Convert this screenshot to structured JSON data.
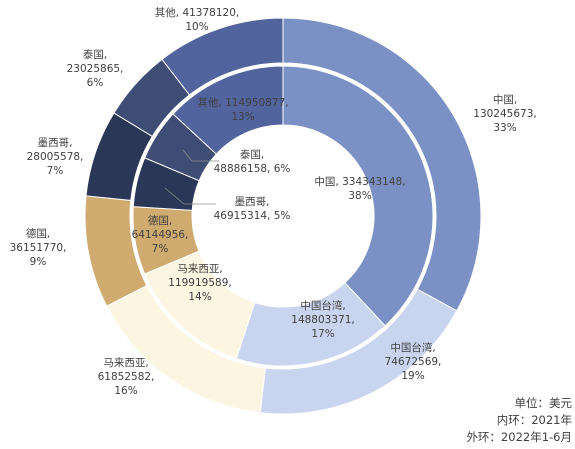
{
  "chart_data": [
    {
      "type": "pie",
      "ring": "outer",
      "categories": [
        "中国",
        "中国台湾",
        "马来西亚",
        "德国",
        "墨西哥",
        "泰国",
        "其他"
      ],
      "values": [
        130245673,
        74672569,
        61852582,
        36151770,
        28005578,
        23025865,
        41378120
      ],
      "percent_labels": [
        "33%",
        "19%",
        "16%",
        "9%",
        "7%",
        "6%",
        "10%"
      ],
      "value_labels": [
        "130245673,",
        "74672569,",
        "61852582,",
        "36151770,",
        "28005578,",
        "23025865,",
        "41378120,"
      ],
      "colors": [
        "#7b90c4",
        "#c9d5ee",
        "#fcf5e1",
        "#cfab70",
        "#2a3756",
        "#3f4d75",
        "#52649e"
      ]
    },
    {
      "type": "pie",
      "ring": "inner",
      "categories": [
        "中国",
        "中国台湾",
        "马来西亚",
        "德国",
        "墨西哥",
        "泰国",
        "其他"
      ],
      "values": [
        334343148,
        148803371,
        119919589,
        64144956,
        46915314,
        48886158,
        114950877
      ],
      "percent_labels": [
        "38%",
        "17%",
        "14%",
        "7%",
        "5%",
        "6%",
        "13%"
      ],
      "value_labels": [
        "334343148,",
        "148803371,",
        "119919589,",
        "64144956,",
        "46915314,",
        "48886158,",
        "114950877,"
      ],
      "colors": [
        "#7b90c4",
        "#c9d5ee",
        "#fcf5e1",
        "#cfab70",
        "#2a3756",
        "#3f4d75",
        "#52649e"
      ]
    }
  ],
  "labels": {
    "outer": [
      [
        "中国,",
        "130245673,",
        "33%"
      ],
      [
        "中国台湾,",
        "74672569,",
        "19%"
      ],
      [
        "马来西亚,",
        "61852582,",
        "16%"
      ],
      [
        "德国,",
        "36151770,",
        "9%"
      ],
      [
        "墨西哥,",
        "28005578,",
        "7%"
      ],
      [
        "泰国,",
        "23025865,",
        "6%"
      ],
      [
        "其他, 41378120,",
        "10%"
      ]
    ],
    "inner": [
      [
        "中国, 334343148,",
        "38%"
      ],
      [
        "中国台湾,",
        "148803371,",
        "17%"
      ],
      [
        "马来西亚,",
        "119919589,",
        "14%"
      ],
      [
        "德国,",
        "64144956,",
        "7%"
      ],
      [
        "墨西哥,",
        "46915314, 5%"
      ],
      [
        "泰国,",
        "48886158, 6%"
      ],
      [
        "其他, 114950877,",
        "13%"
      ]
    ]
  },
  "note": {
    "unit": "单位：美元",
    "inner_ring": "内环：2021年",
    "outer_ring": "外环：2022年1-6月"
  }
}
